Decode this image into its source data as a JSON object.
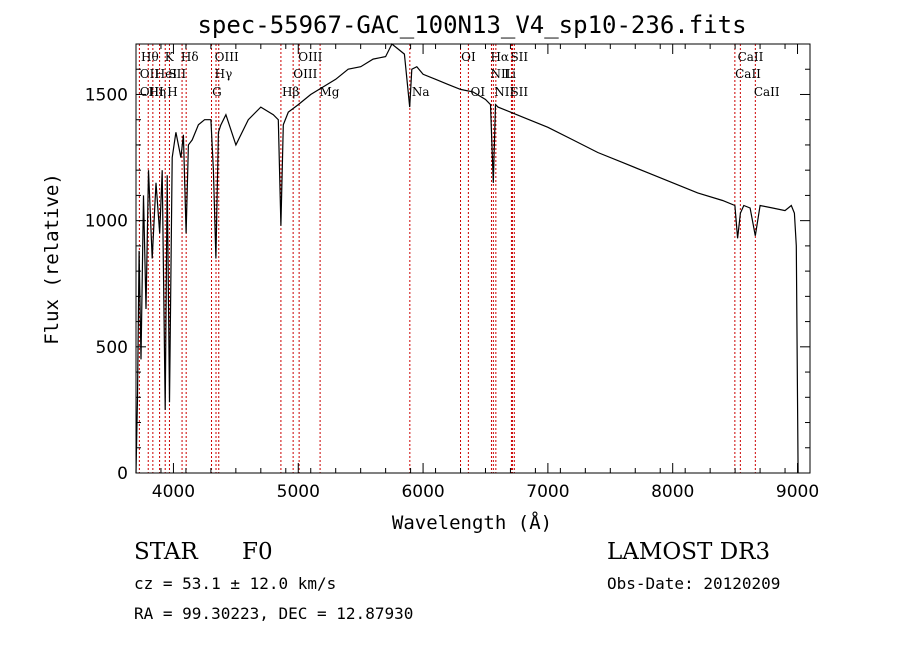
{
  "chart_data": {
    "type": "line",
    "title": "spec-55967-GAC_100N13_V4_sp10-236.fits",
    "xlabel": "Wavelength (Å)",
    "ylabel": "Flux (relative)",
    "xlim": [
      3700,
      9100
    ],
    "ylim": [
      0,
      1700
    ],
    "x_ticks": [
      4000,
      5000,
      6000,
      7000,
      8000,
      9000
    ],
    "y_ticks": [
      0,
      500,
      1000,
      1500
    ],
    "series": [
      {
        "name": "spectrum",
        "x": [
          3700,
          3712,
          3725,
          3740,
          3760,
          3780,
          3800,
          3830,
          3860,
          3890,
          3910,
          3934,
          3950,
          3968,
          3990,
          4020,
          4060,
          4080,
          4101,
          4120,
          4150,
          4200,
          4250,
          4300,
          4320,
          4340,
          4360,
          4380,
          4420,
          4500,
          4600,
          4700,
          4800,
          4840,
          4861,
          4880,
          4920,
          5000,
          5100,
          5200,
          5300,
          5400,
          5500,
          5600,
          5700,
          5750,
          5800,
          5850,
          5893,
          5910,
          5950,
          6000,
          6100,
          6200,
          6300,
          6400,
          6500,
          6540,
          6563,
          6580,
          6600,
          6700,
          6800,
          7000,
          7200,
          7400,
          7600,
          7800,
          8000,
          8200,
          8400,
          8498,
          8520,
          8542,
          8570,
          8620,
          8662,
          8700,
          8800,
          8900,
          8950,
          8975,
          8990,
          9000,
          9005
        ],
        "y": [
          0,
          300,
          880,
          450,
          1100,
          650,
          1200,
          850,
          1150,
          950,
          1200,
          250,
          1180,
          280,
          1250,
          1350,
          1250,
          1340,
          950,
          1300,
          1320,
          1380,
          1400,
          1400,
          1200,
          850,
          1350,
          1380,
          1420,
          1300,
          1400,
          1450,
          1420,
          1400,
          980,
          1380,
          1430,
          1460,
          1500,
          1530,
          1560,
          1600,
          1610,
          1640,
          1650,
          1720,
          1680,
          1660,
          1450,
          1600,
          1610,
          1580,
          1560,
          1540,
          1520,
          1510,
          1480,
          1460,
          1150,
          1460,
          1450,
          1430,
          1410,
          1370,
          1320,
          1270,
          1230,
          1190,
          1150,
          1110,
          1080,
          1060,
          930,
          1030,
          1060,
          1050,
          940,
          1060,
          1050,
          1040,
          1060,
          1030,
          900,
          300,
          0
        ]
      }
    ],
    "lines": [
      {
        "name": "OII",
        "x": 3727
      },
      {
        "name": "Hθ",
        "x": 3798
      },
      {
        "name": "Hη",
        "x": 3835
      },
      {
        "name": "HeI",
        "x": 3889
      },
      {
        "name": "K",
        "x": 3934
      },
      {
        "name": "H",
        "x": 3968
      },
      {
        "name": "SII",
        "x": 4069
      },
      {
        "name": "Hδ",
        "x": 4102
      },
      {
        "name": "G",
        "x": 4305
      },
      {
        "name": "Hγ",
        "x": 4341
      },
      {
        "name": "OIII",
        "x": 4363
      },
      {
        "name": "Hβ",
        "x": 4861
      },
      {
        "name": "OIII",
        "x": 4959
      },
      {
        "name": "OIII",
        "x": 5007
      },
      {
        "name": "Mg",
        "x": 5175
      },
      {
        "name": "Na",
        "x": 5894
      },
      {
        "name": "OI",
        "x": 6300
      },
      {
        "name": "OI",
        "x": 6363
      },
      {
        "name": "NII",
        "x": 6548
      },
      {
        "name": "Hα",
        "x": 6563
      },
      {
        "name": "NII",
        "x": 6583
      },
      {
        "name": "Li",
        "x": 6708
      },
      {
        "name": "SII",
        "x": 6716
      },
      {
        "name": "SII",
        "x": 6731
      },
      {
        "name": "CaII",
        "x": 8498
      },
      {
        "name": "CaII",
        "x": 8542
      },
      {
        "name": "CaII",
        "x": 8662
      }
    ],
    "line_labels": [
      {
        "text": "Hθ",
        "x": 3740,
        "row": 1
      },
      {
        "text": "K",
        "x": 3930,
        "row": 1
      },
      {
        "text": "Hδ",
        "x": 4060,
        "row": 1
      },
      {
        "text": "OIII",
        "x": 4330,
        "row": 1
      },
      {
        "text": "OIII",
        "x": 5000,
        "row": 1
      },
      {
        "text": "OI",
        "x": 6305,
        "row": 1
      },
      {
        "text": "Hα",
        "x": 6540,
        "row": 1
      },
      {
        "text": "SII",
        "x": 6700,
        "row": 1
      },
      {
        "text": "CaII",
        "x": 8520,
        "row": 1
      },
      {
        "text": "OII",
        "x": 3730,
        "row": 2
      },
      {
        "text": "HeI",
        "x": 3850,
        "row": 2
      },
      {
        "text": "SII",
        "x": 3960,
        "row": 2
      },
      {
        "text": "Hγ",
        "x": 4330,
        "row": 2
      },
      {
        "text": "OIII",
        "x": 4960,
        "row": 2
      },
      {
        "text": "NII",
        "x": 6540,
        "row": 2
      },
      {
        "text": "Li",
        "x": 6650,
        "row": 2
      },
      {
        "text": "CaII",
        "x": 8500,
        "row": 2
      },
      {
        "text": "OIII",
        "x": 3730,
        "row": 3
      },
      {
        "text": "Hη",
        "x": 3800,
        "row": 3
      },
      {
        "text": "H",
        "x": 3950,
        "row": 3
      },
      {
        "text": "G",
        "x": 4310,
        "row": 3
      },
      {
        "text": "Hβ",
        "x": 4870,
        "row": 3
      },
      {
        "text": "Mg",
        "x": 5170,
        "row": 3
      },
      {
        "text": "Na",
        "x": 5910,
        "row": 3
      },
      {
        "text": "OI",
        "x": 6380,
        "row": 3
      },
      {
        "text": "NII",
        "x": 6570,
        "row": 3
      },
      {
        "text": "SII",
        "x": 6700,
        "row": 3
      },
      {
        "text": "CaII",
        "x": 8650,
        "row": 3
      }
    ]
  },
  "info": {
    "class_label": "STAR",
    "subclass": "F0",
    "survey": "LAMOST DR3",
    "cz": "cz = 53.1 ± 12.0 km/s",
    "obs_date": "Obs-Date: 20120209",
    "coords": "RA =  99.30223, DEC =  12.87930"
  },
  "colors": {
    "line_marker": "#cc0000",
    "spectrum": "#000000"
  }
}
